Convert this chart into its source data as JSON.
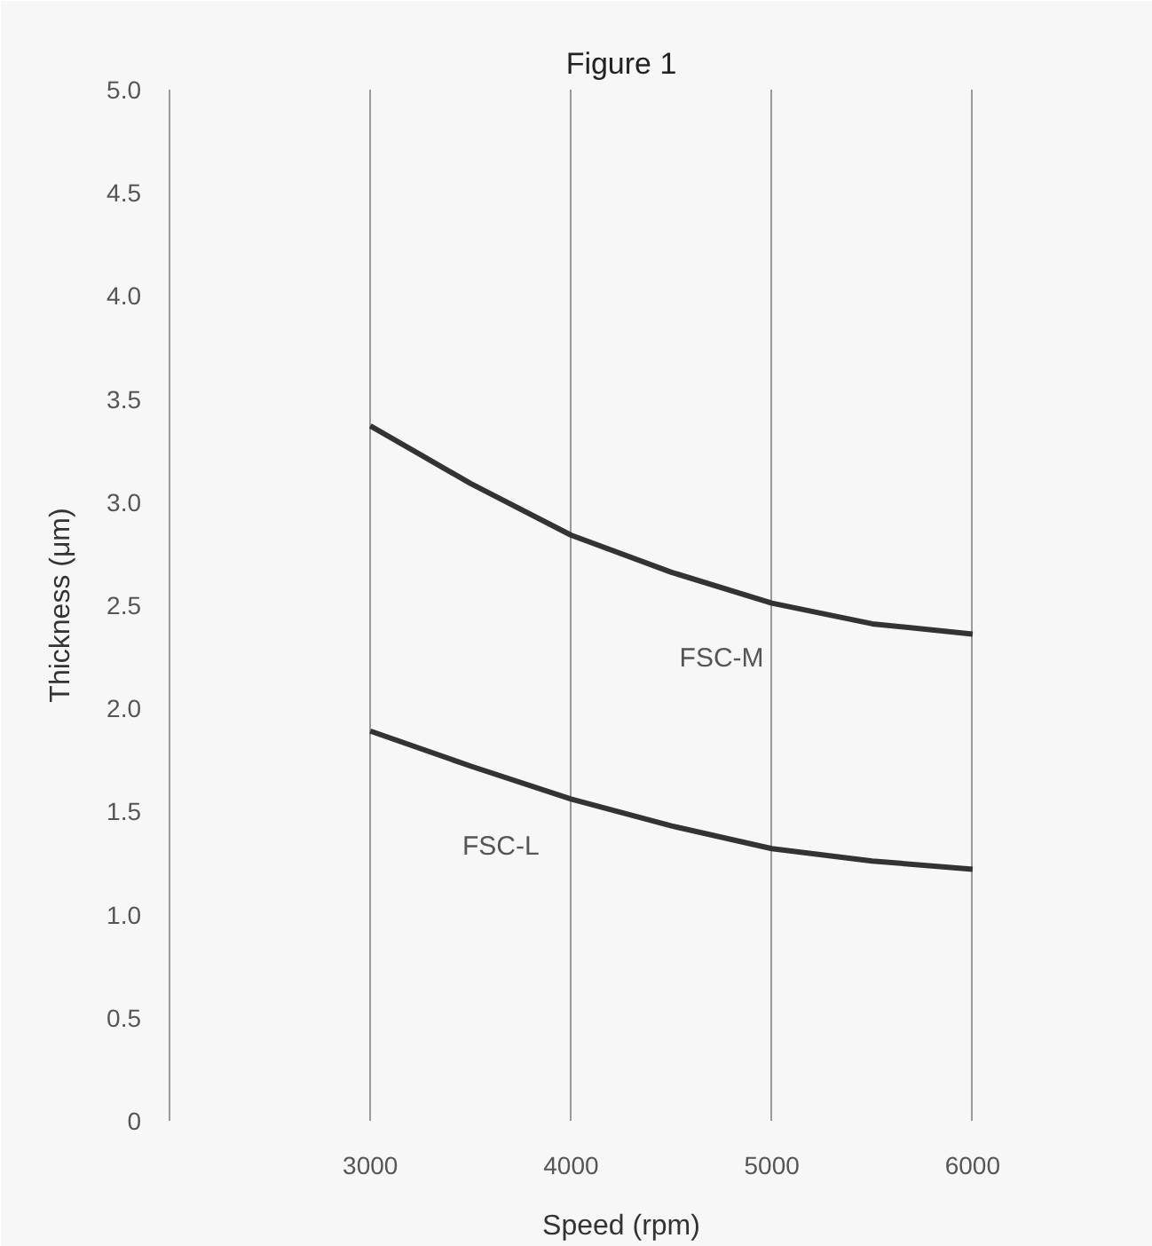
{
  "chart_data": {
    "type": "line",
    "title": "Figure 1",
    "xlabel": "Speed (rpm)",
    "ylabel": "Thickness (μm)",
    "x": [
      3000,
      3500,
      4000,
      4500,
      5000,
      5500,
      6000
    ],
    "series": [
      {
        "name": "FSC-M",
        "color": "#333333",
        "values": [
          3.37,
          3.09,
          2.84,
          2.66,
          2.51,
          2.41,
          2.36
        ]
      },
      {
        "name": "FSC-L",
        "color": "#333333",
        "values": [
          1.89,
          1.72,
          1.56,
          1.43,
          1.32,
          1.26,
          1.22
        ]
      }
    ],
    "xlim": [
      2000,
      6500
    ],
    "xticks": [
      3000,
      4000,
      5000,
      6000
    ],
    "ylim": [
      0,
      5.0
    ],
    "yticks": [
      {
        "value": 0,
        "label": "0"
      },
      {
        "value": 0.5,
        "label": "0.5"
      },
      {
        "value": 1.0,
        "label": "1.0"
      },
      {
        "value": 1.5,
        "label": "1.5"
      },
      {
        "value": 2.0,
        "label": "2.0"
      },
      {
        "value": 2.5,
        "label": "2.5"
      },
      {
        "value": 3.0,
        "label": "3.0"
      },
      {
        "value": 3.5,
        "label": "3.5"
      },
      {
        "value": 4.0,
        "label": "4.0"
      },
      {
        "value": 4.5,
        "label": "4.5"
      },
      {
        "value": 5.0,
        "label": "5.0"
      }
    ],
    "grid": "x",
    "marker": "none",
    "line_style": "solid"
  }
}
